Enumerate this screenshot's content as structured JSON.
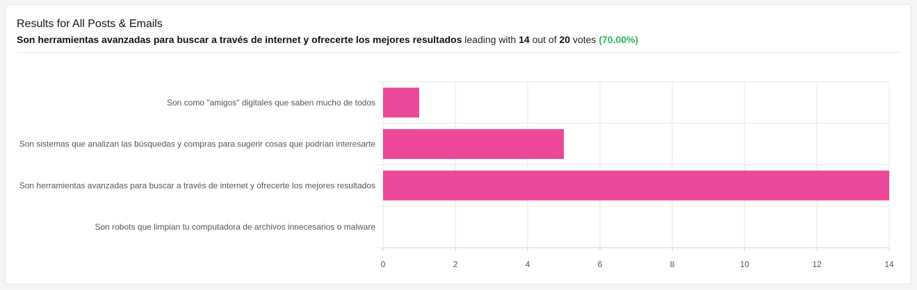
{
  "header": {
    "title": "Results for All Posts & Emails",
    "leader_text": "Son herramientas avanzadas para buscar a través de internet y ofrecerte los mejores resultados",
    "leading_with": "leading with",
    "votes_count": "14",
    "out_of": "out of",
    "total_votes": "20",
    "votes_word": "votes",
    "percent": "(70.00%)"
  },
  "colors": {
    "bar": "#ec4899",
    "grid": "#e6e7ea",
    "accent_green": "#2fb45b"
  },
  "chart_data": {
    "type": "bar",
    "orientation": "horizontal",
    "categories": [
      "Son como \"amigos\" digitales que saben mucho de todos",
      "Son sistemas que analizan las búsquedas y compras para sugerir cosas que podrían interesarte",
      "Son herramientas avanzadas para buscar a través de internet y ofrecerte los mejores resultados",
      "Son robots que limpian tu computadora de archivos innecesarios o malware"
    ],
    "values": [
      1,
      5,
      14,
      0
    ],
    "xlim": [
      0,
      14
    ],
    "xticks": [
      0,
      2,
      4,
      6,
      8,
      10,
      12,
      14
    ],
    "grid": true
  }
}
